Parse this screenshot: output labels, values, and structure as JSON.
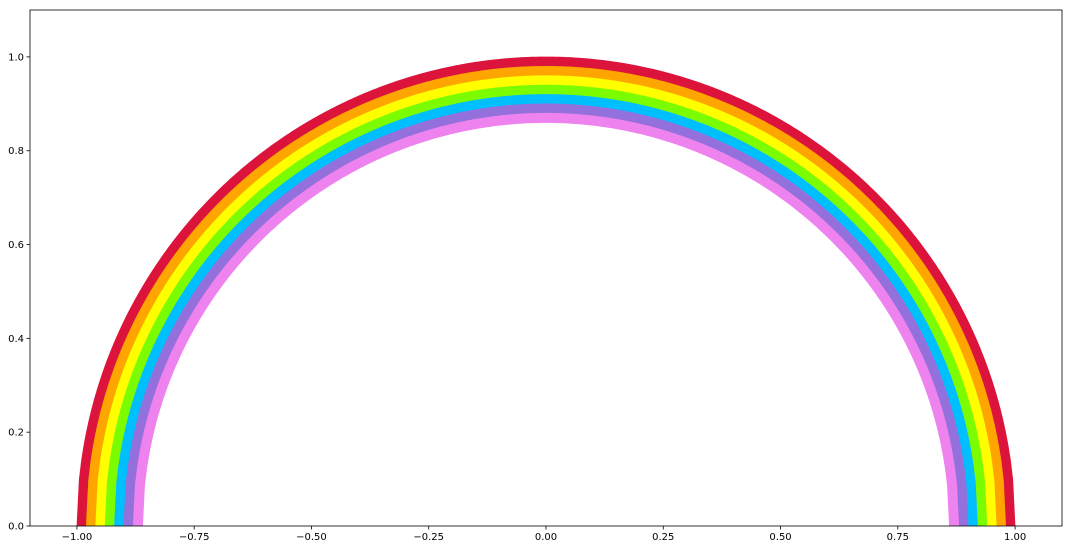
{
  "chart_data": {
    "type": "line",
    "title": "",
    "xlabel": "",
    "ylabel": "",
    "xlim": [
      -1.1,
      1.1
    ],
    "ylim": [
      0.0,
      1.1
    ],
    "grid": false,
    "legend": "none",
    "x_ticks": [
      -1.0,
      -0.75,
      -0.5,
      -0.25,
      0.0,
      0.25,
      0.5,
      0.75,
      1.0
    ],
    "x_tick_labels": [
      "−1.00",
      "−0.75",
      "−0.50",
      "−0.25",
      "0.00",
      "0.25",
      "0.50",
      "0.75",
      "1.00"
    ],
    "y_ticks": [
      0.0,
      0.2,
      0.4,
      0.6,
      0.8,
      1.0
    ],
    "y_tick_labels": [
      "0.0",
      "0.2",
      "0.4",
      "0.6",
      "0.8",
      "1.0"
    ],
    "series": [
      {
        "color": "#dc143c",
        "radius": 0.99,
        "curve": "semicircle y = sqrt(r^2 - x^2)"
      },
      {
        "color": "#ffa500",
        "radius": 0.97,
        "curve": "semicircle y = sqrt(r^2 - x^2)"
      },
      {
        "color": "#ffff00",
        "radius": 0.95,
        "curve": "semicircle y = sqrt(r^2 - x^2)"
      },
      {
        "color": "#7cfc00",
        "radius": 0.93,
        "curve": "semicircle y = sqrt(r^2 - x^2)"
      },
      {
        "color": "#00bfff",
        "radius": 0.91,
        "curve": "semicircle y = sqrt(r^2 - x^2)"
      },
      {
        "color": "#9370db",
        "radius": 0.89,
        "curve": "semicircle y = sqrt(r^2 - x^2)"
      },
      {
        "color": "#ee82ee",
        "radius": 0.87,
        "curve": "semicircle y = sqrt(r^2 - x^2)"
      }
    ]
  }
}
